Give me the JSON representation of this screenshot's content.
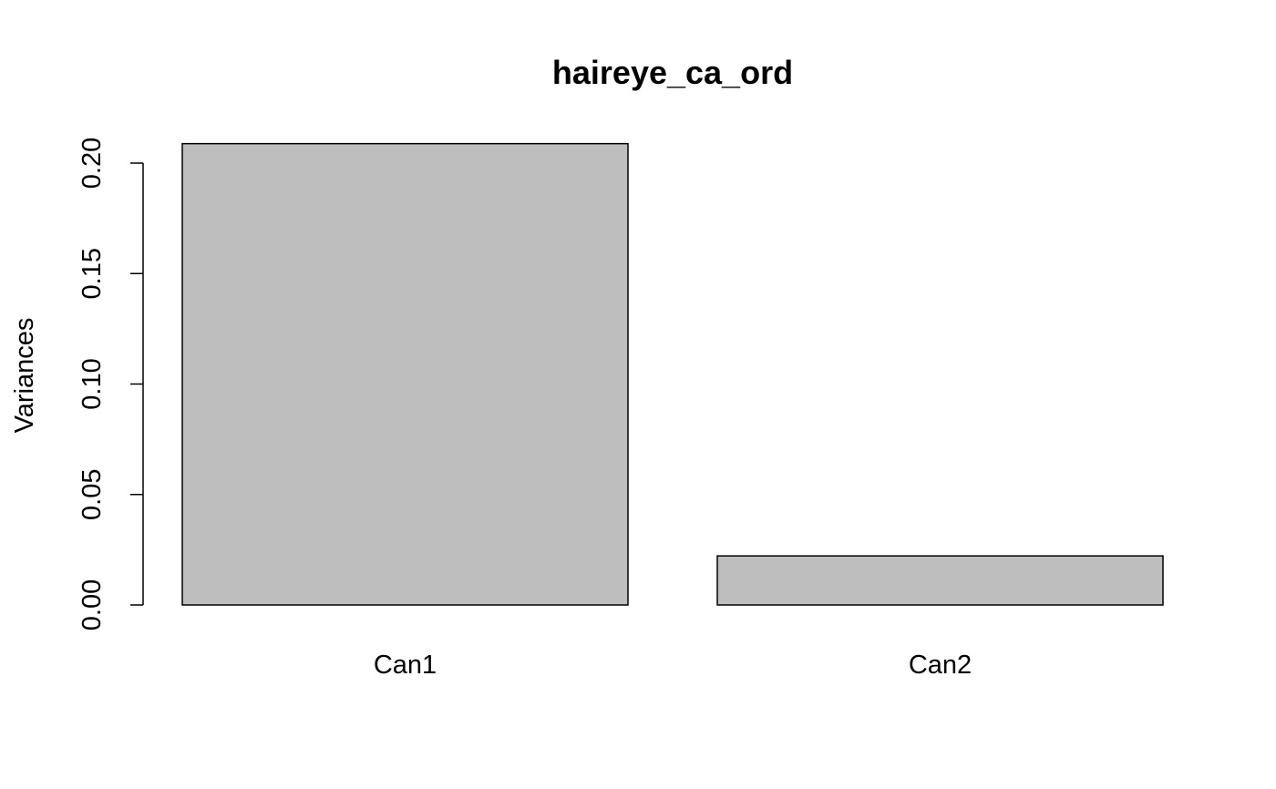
{
  "chart_data": {
    "type": "bar",
    "title": "haireye_ca_ord",
    "xlabel": "",
    "ylabel": "Variances",
    "categories": [
      "Can1",
      "Can2"
    ],
    "values": [
      0.2088,
      0.0222
    ],
    "ylim": [
      0,
      0.2
    ],
    "yticks": [
      0.0,
      0.05,
      0.1,
      0.15,
      0.2
    ],
    "ytick_labels": [
      "0.00",
      "0.05",
      "0.10",
      "0.15",
      "0.20"
    ],
    "bar_color": "#bebebe",
    "grid": false,
    "legend": "none"
  }
}
